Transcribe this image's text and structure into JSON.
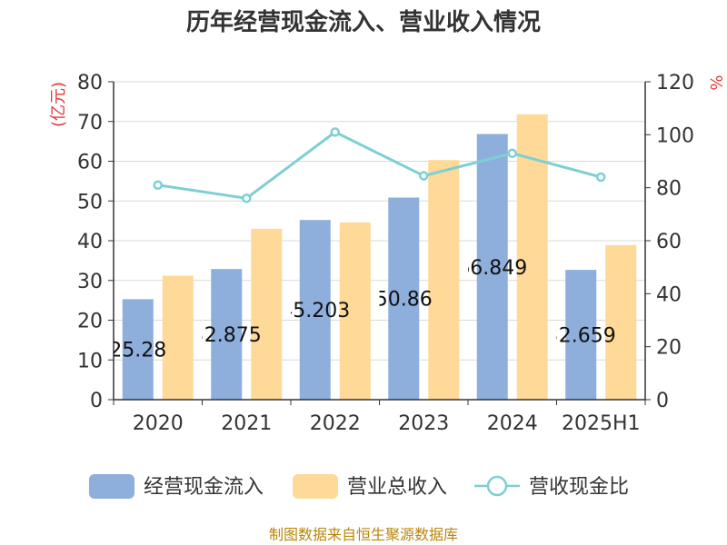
{
  "chart_data": {
    "type": "bar",
    "title": "历年经营现金流入、营业收入情况",
    "categories": [
      "2020",
      "2021",
      "2022",
      "2023",
      "2024",
      "2025H1"
    ],
    "series": [
      {
        "name": "经营现金流入",
        "type": "bar",
        "axis": "left",
        "color": "#8eaedc",
        "values": [
          25.28,
          32.875,
          45.203,
          50.86,
          66.849,
          32.659
        ],
        "labels": [
          "25.28",
          "32.875",
          "45.203",
          "50.86",
          "66.849",
          "32.659"
        ]
      },
      {
        "name": "营业总收入",
        "type": "bar",
        "axis": "left",
        "color": "#fed998",
        "values": [
          31.2,
          43.0,
          44.6,
          60.3,
          71.8,
          38.9
        ]
      },
      {
        "name": "营收现金比",
        "type": "line",
        "axis": "right",
        "color": "#7ecfd4",
        "values": [
          81,
          76,
          101,
          84.5,
          93,
          84
        ]
      }
    ],
    "y_left": {
      "label": "(亿元)",
      "min": 0,
      "max": 80,
      "ticks": [
        "0",
        "10",
        "20",
        "30",
        "40",
        "50",
        "60",
        "70",
        "80"
      ]
    },
    "y_right": {
      "label": "%",
      "min": 0,
      "max": 120,
      "ticks": [
        "0",
        "20",
        "40",
        "60",
        "80",
        "100",
        "120"
      ]
    },
    "grid": true,
    "legend_position": "bottom"
  },
  "source_text": "制图数据来自恒生聚源数据库"
}
